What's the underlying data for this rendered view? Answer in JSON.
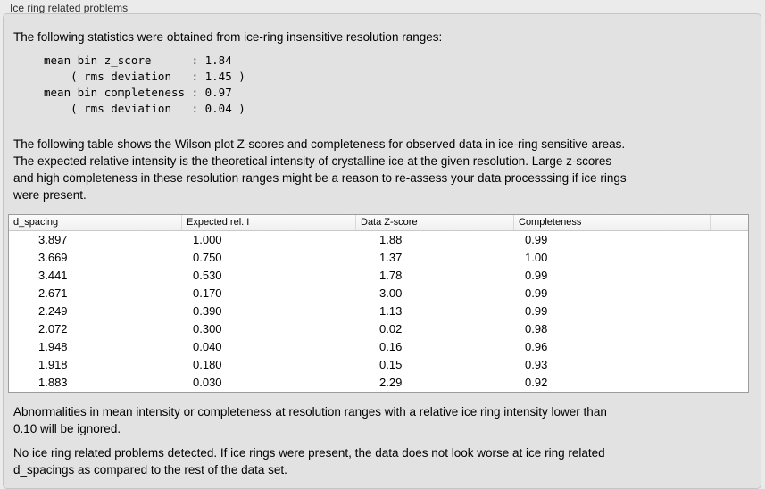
{
  "section": {
    "label": "Ice ring related problems"
  },
  "intro": {
    "text": "The following statistics were obtained from ice-ring insensitive resolution ranges:"
  },
  "stats_block": {
    "mean_bin_z_score": "1.84",
    "z_score_rms_deviation": "1.45",
    "mean_bin_completeness": "0.97",
    "completeness_rms_deviation": "0.04",
    "text": "mean bin z_score      : 1.84\n    ( rms deviation   : 1.45 )\nmean bin completeness : 0.97\n    ( rms deviation   : 0.04 )"
  },
  "table_intro": {
    "text": "The following table shows the Wilson plot Z-scores and completeness for observed data in ice-ring sensitive areas.\nThe expected relative intensity is the theoretical intensity of crystalline ice at the given resolution. Large z-scores\nand high completeness in these resolution ranges might be a reason to re-assess your data processsing if ice rings\nwere present."
  },
  "table": {
    "columns": [
      "d_spacing",
      "Expected rel. I",
      "Data Z-score",
      "Completeness",
      ""
    ],
    "rows": [
      [
        "3.897",
        "1.000",
        "1.88",
        "0.99"
      ],
      [
        "3.669",
        "0.750",
        "1.37",
        "1.00"
      ],
      [
        "3.441",
        "0.530",
        "1.78",
        "0.99"
      ],
      [
        "2.671",
        "0.170",
        "3.00",
        "0.99"
      ],
      [
        "2.249",
        "0.390",
        "1.13",
        "0.99"
      ],
      [
        "2.072",
        "0.300",
        "0.02",
        "0.98"
      ],
      [
        "1.948",
        "0.040",
        "0.16",
        "0.96"
      ],
      [
        "1.918",
        "0.180",
        "0.15",
        "0.93"
      ],
      [
        "1.883",
        "0.030",
        "2.29",
        "0.92"
      ]
    ]
  },
  "notes": {
    "ignore_note": "Abnormalities in mean intensity or completeness at resolution ranges with a relative ice ring intensity lower than\n0.10 will be ignored.",
    "conclusion": "No ice ring related problems detected. If ice rings were present, the data does not look worse at ice ring related\nd_spacings as compared to the rest of the data set."
  },
  "colors": {
    "page_background": "#ebebeb",
    "panel_background": "#e2e2e2",
    "table_background": "#ffffff",
    "table_border": "#9c9c9c",
    "text": "#000000"
  }
}
